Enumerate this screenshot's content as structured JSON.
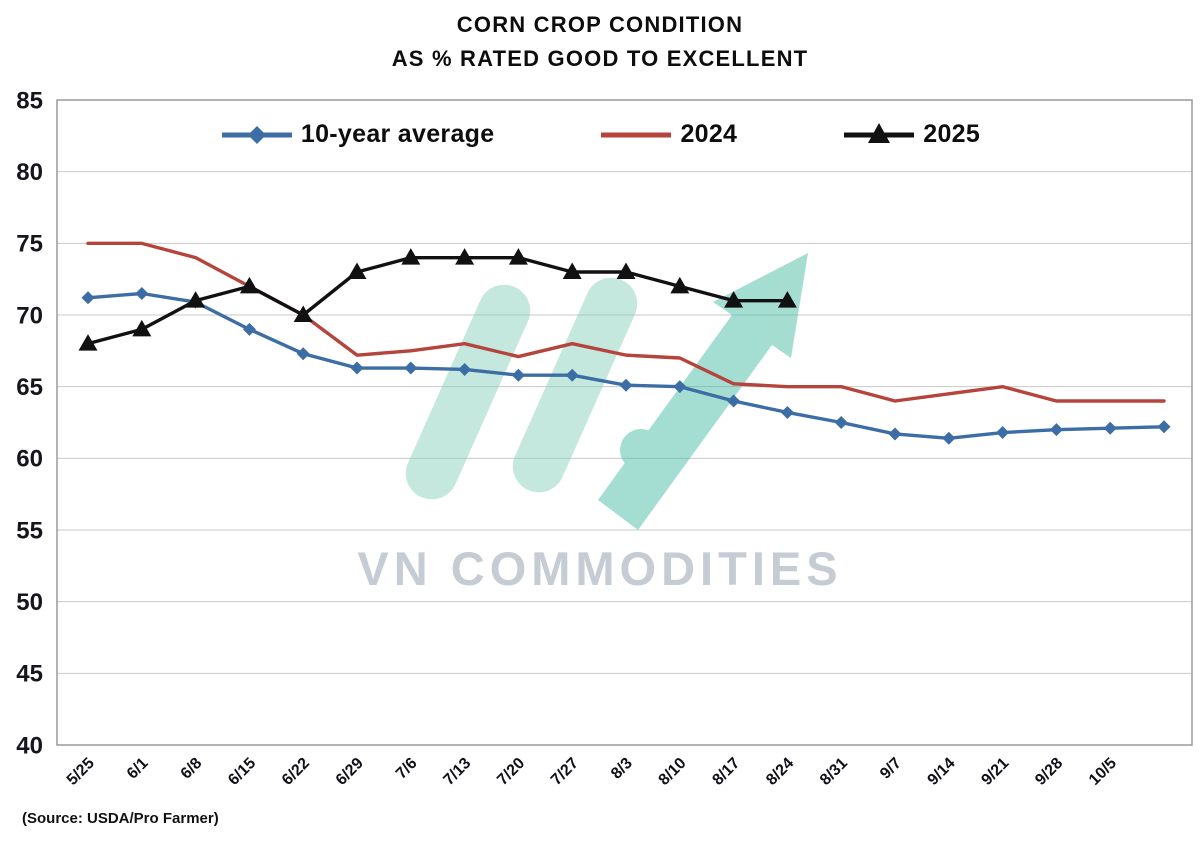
{
  "chart": {
    "title_line1": "CORN CROP CONDITION",
    "title_line2": "AS % RATED GOOD TO EXCELLENT",
    "source": "(Source: USDA/Pro Farmer)",
    "watermark": {
      "text": "VN COMMODITIES",
      "bar_color": "#8bd0be",
      "arrow_color": "#4cbda4"
    }
  },
  "chart_data": {
    "type": "line",
    "title": "CORN CROP CONDITION AS % RATED GOOD TO EXCELLENT",
    "xlabel": "",
    "ylabel": "",
    "ylim": [
      40,
      85
    ],
    "ytick_step": 5,
    "grid": true,
    "legend_position": "top-inside",
    "categories": [
      "5/25",
      "6/1",
      "6/8",
      "6/15",
      "6/22",
      "6/29",
      "7/6",
      "7/13",
      "7/20",
      "7/27",
      "8/3",
      "8/10",
      "8/17",
      "8/24",
      "8/31",
      "9/7",
      "9/14",
      "9/21",
      "9/28",
      "10/5",
      ""
    ],
    "series": [
      {
        "name": "10-year average",
        "color": "#3c6ea5",
        "marker": "diamond",
        "values": [
          71.2,
          71.5,
          70.9,
          69,
          67.3,
          66.3,
          66.3,
          66.2,
          65.8,
          65.8,
          65.1,
          65,
          64,
          63.2,
          62.5,
          61.7,
          61.4,
          61.8,
          62,
          62.1,
          62.2
        ]
      },
      {
        "name": "2024",
        "color": "#b5453c",
        "marker": "none",
        "values": [
          75,
          75,
          74,
          72,
          70,
          67.2,
          67.5,
          68,
          67.1,
          68,
          67.2,
          67,
          65.2,
          65,
          65,
          64,
          64.5,
          65,
          64,
          64,
          64
        ]
      },
      {
        "name": "2025",
        "color": "#111111",
        "marker": "triangle",
        "values": [
          68,
          69,
          71,
          72,
          70,
          73,
          74,
          74,
          74,
          73,
          73,
          72,
          71,
          71,
          null,
          null,
          null,
          null,
          null,
          null,
          null
        ]
      }
    ]
  }
}
